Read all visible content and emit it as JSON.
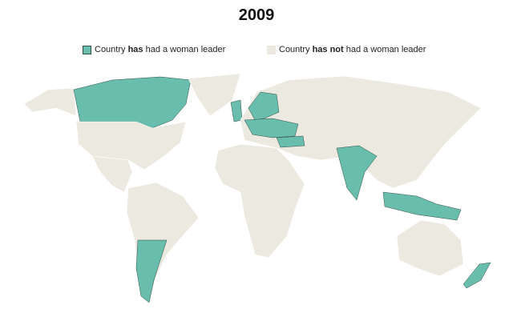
{
  "header": {
    "title": "2009"
  },
  "legend": [
    {
      "parts": [
        "Country ",
        "has",
        " had a woman leader"
      ]
    },
    {
      "parts": [
        "Country ",
        "has not",
        " had a woman leader"
      ]
    }
  ]
}
